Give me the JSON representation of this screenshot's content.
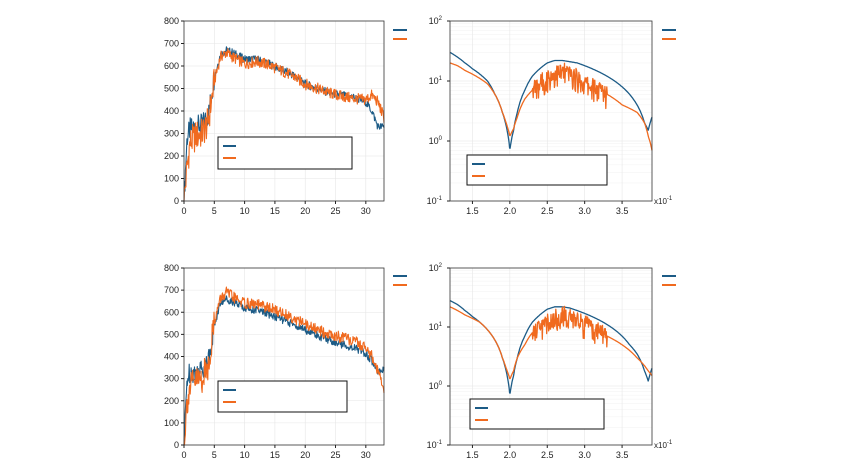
{
  "colors": {
    "series_blue": "#1c5b86",
    "series_orange": "#f06a1f"
  },
  "chart_data": [
    {
      "type": "line",
      "id": "top-left",
      "title": "",
      "xlabel": "",
      "ylabel": "",
      "xlim": [
        0,
        33
      ],
      "ylim": [
        0,
        800
      ],
      "xticks": [
        0,
        5,
        10,
        15,
        20,
        25,
        30
      ],
      "xtick_labels": [
        "0",
        "5",
        "10",
        "15",
        "20",
        "25",
        "30"
      ],
      "yticks": [
        0,
        100,
        200,
        300,
        400,
        500,
        600,
        700,
        800
      ],
      "ytick_labels": [
        "0",
        "100",
        "200",
        "300",
        "400",
        "500",
        "600",
        "700",
        "800"
      ],
      "grid": true,
      "legend_placement": "inside-left (empty entries) and outside-top-right",
      "series": [
        {
          "color": "#1c5b86",
          "x": [
            0,
            0.5,
            1,
            2,
            3,
            4,
            5,
            6,
            7,
            8,
            10,
            12,
            14,
            16,
            18,
            20,
            22,
            24,
            26,
            28,
            30,
            31,
            32,
            33
          ],
          "y": [
            0,
            280,
            320,
            330,
            340,
            380,
            550,
            650,
            670,
            660,
            630,
            630,
            610,
            585,
            560,
            520,
            500,
            480,
            470,
            460,
            440,
            400,
            330,
            330
          ]
        },
        {
          "color": "#f06a1f",
          "x": [
            0,
            0.5,
            1,
            2,
            3,
            4,
            5,
            6,
            7,
            8,
            10,
            12,
            14,
            16,
            18,
            20,
            22,
            24,
            26,
            28,
            30,
            31,
            32,
            33
          ],
          "y": [
            0,
            150,
            260,
            290,
            300,
            350,
            530,
            640,
            660,
            640,
            610,
            620,
            605,
            580,
            555,
            520,
            500,
            480,
            465,
            455,
            450,
            470,
            440,
            370
          ]
        }
      ]
    },
    {
      "type": "line",
      "id": "top-right",
      "title": "",
      "xlabel": "",
      "ylabel": "",
      "xscale_multiplier": "x10",
      "xscale_exponent": "-1",
      "xlim": [
        1.2,
        3.9
      ],
      "ylim_log10": [
        -1,
        2
      ],
      "xticks": [
        1.5,
        2.0,
        2.5,
        3.0,
        3.5
      ],
      "xtick_labels": [
        "1.5",
        "2.0",
        "2.5",
        "3.0",
        "3.5"
      ],
      "yticks_log10": [
        -1,
        0,
        1,
        2
      ],
      "ytick_base": "10",
      "ytick_exponents": [
        "-1",
        "0",
        "1",
        "2"
      ],
      "yscale": "log",
      "grid": true,
      "legend_placement": "inside-bottom (empty entries) and outside-top-right",
      "series": [
        {
          "color": "#1c5b86",
          "x": [
            1.2,
            1.3,
            1.4,
            1.5,
            1.6,
            1.7,
            1.8,
            1.9,
            1.95,
            2.0,
            2.05,
            2.1,
            2.2,
            2.3,
            2.4,
            2.5,
            2.6,
            2.7,
            2.8,
            2.9,
            3.0,
            3.1,
            3.2,
            3.3,
            3.4,
            3.5,
            3.6,
            3.7,
            3.8,
            3.85,
            3.9
          ],
          "y": [
            30,
            25,
            20,
            16,
            13,
            10,
            6,
            3,
            1.8,
            0.7,
            1.5,
            3,
            7,
            12,
            16,
            20,
            22,
            22,
            21,
            20,
            18,
            16,
            14,
            12,
            10,
            8,
            6,
            4,
            2,
            1.5,
            2.5
          ]
        },
        {
          "color": "#f06a1f",
          "x": [
            1.2,
            1.3,
            1.4,
            1.5,
            1.6,
            1.7,
            1.8,
            1.9,
            1.95,
            2.0,
            2.05,
            2.1,
            2.2,
            2.3,
            2.4,
            2.5,
            2.6,
            2.7,
            2.8,
            2.9,
            3.0,
            3.1,
            3.2,
            3.3,
            3.4,
            3.5,
            3.6,
            3.7,
            3.8,
            3.85,
            3.9
          ],
          "y": [
            20,
            18,
            15,
            13,
            11,
            9,
            6,
            3,
            2,
            1.2,
            1.6,
            2.5,
            5,
            7,
            9,
            11,
            13,
            14,
            13,
            11,
            9,
            8,
            7,
            6,
            5,
            4,
            3.5,
            3,
            2,
            1.2,
            0.7
          ]
        }
      ]
    },
    {
      "type": "line",
      "id": "bottom-left",
      "title": "",
      "xlabel": "",
      "ylabel": "",
      "xlim": [
        0,
        33
      ],
      "ylim": [
        0,
        800
      ],
      "xticks": [
        0,
        5,
        10,
        15,
        20,
        25,
        30
      ],
      "xtick_labels": [
        "0",
        "5",
        "10",
        "15",
        "20",
        "25",
        "30"
      ],
      "yticks": [
        0,
        100,
        200,
        300,
        400,
        500,
        600,
        700,
        800
      ],
      "ytick_labels": [
        "0",
        "100",
        "200",
        "300",
        "400",
        "500",
        "600",
        "700",
        "800"
      ],
      "grid": true,
      "legend_placement": "inside-left (empty entries) and outside-top-right",
      "series": [
        {
          "color": "#1c5b86",
          "x": [
            0,
            0.5,
            1,
            2,
            3,
            4,
            5,
            6,
            7,
            8,
            10,
            12,
            14,
            16,
            18,
            20,
            22,
            24,
            26,
            28,
            30,
            31,
            32,
            33
          ],
          "y": [
            0,
            300,
            330,
            330,
            340,
            380,
            540,
            640,
            660,
            650,
            620,
            610,
            590,
            570,
            545,
            520,
            495,
            475,
            455,
            440,
            415,
            380,
            335,
            335
          ]
        },
        {
          "color": "#f06a1f",
          "x": [
            0,
            0.5,
            1,
            2,
            3,
            4,
            5,
            6,
            7,
            8,
            10,
            12,
            14,
            16,
            18,
            20,
            22,
            24,
            26,
            28,
            30,
            31,
            32,
            33
          ],
          "y": [
            0,
            200,
            260,
            290,
            300,
            360,
            560,
            660,
            690,
            670,
            640,
            635,
            620,
            600,
            575,
            545,
            520,
            500,
            485,
            470,
            440,
            400,
            330,
            250
          ]
        }
      ]
    },
    {
      "type": "line",
      "id": "bottom-right",
      "title": "",
      "xlabel": "",
      "ylabel": "",
      "xscale_multiplier": "x10",
      "xscale_exponent": "-1",
      "xlim": [
        1.2,
        3.9
      ],
      "ylim_log10": [
        -1,
        2
      ],
      "xticks": [
        1.5,
        2.0,
        2.5,
        3.0,
        3.5
      ],
      "xtick_labels": [
        "1.5",
        "2.0",
        "2.5",
        "3.0",
        "3.5"
      ],
      "yticks_log10": [
        -1,
        0,
        1,
        2
      ],
      "ytick_base": "10",
      "ytick_exponents": [
        "-1",
        "0",
        "1",
        "2"
      ],
      "yscale": "log",
      "grid": true,
      "legend_placement": "inside-bottom (empty entries) and outside-top-right",
      "series": [
        {
          "color": "#1c5b86",
          "x": [
            1.2,
            1.3,
            1.4,
            1.5,
            1.6,
            1.7,
            1.8,
            1.9,
            1.95,
            2.0,
            2.05,
            2.1,
            2.2,
            2.3,
            2.4,
            2.5,
            2.6,
            2.7,
            2.8,
            2.9,
            3.0,
            3.1,
            3.2,
            3.3,
            3.4,
            3.5,
            3.6,
            3.7,
            3.8,
            3.85,
            3.9
          ],
          "y": [
            28,
            24,
            19,
            15,
            12,
            9,
            6,
            3,
            1.8,
            0.7,
            1.5,
            3,
            7,
            12,
            16,
            20,
            22,
            22,
            21,
            19,
            17,
            15,
            13,
            11,
            9,
            7,
            5,
            3.5,
            1.8,
            1.2,
            2
          ]
        },
        {
          "color": "#f06a1f",
          "x": [
            1.2,
            1.3,
            1.4,
            1.5,
            1.6,
            1.7,
            1.8,
            1.9,
            1.95,
            2.0,
            2.05,
            2.1,
            2.2,
            2.3,
            2.4,
            2.5,
            2.6,
            2.7,
            2.8,
            2.9,
            3.0,
            3.1,
            3.2,
            3.3,
            3.4,
            3.5,
            3.6,
            3.7,
            3.8,
            3.85,
            3.9
          ],
          "y": [
            22,
            19,
            16,
            14,
            12,
            9,
            6,
            3,
            2,
            1.3,
            1.8,
            3,
            5,
            8,
            10,
            12,
            14,
            16,
            15,
            13,
            11,
            9,
            8,
            7,
            6,
            5,
            4,
            3,
            2.2,
            1.8,
            1.5
          ]
        }
      ]
    }
  ]
}
